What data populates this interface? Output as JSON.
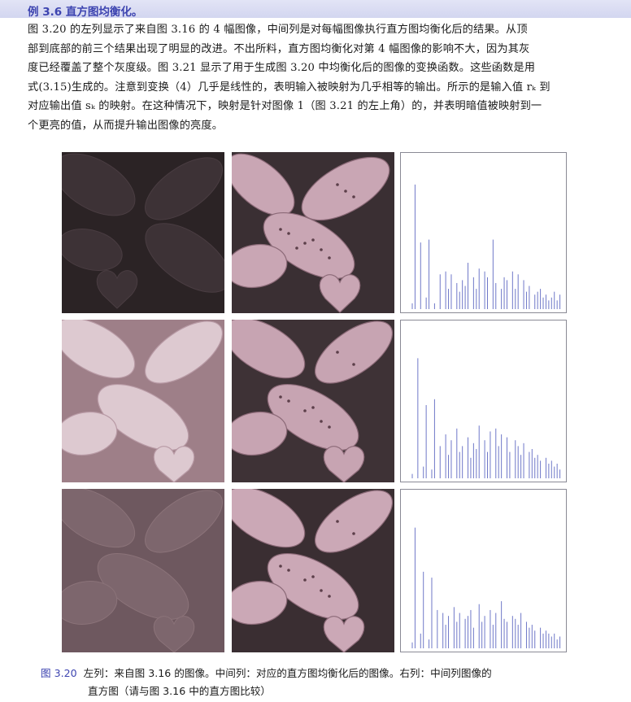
{
  "example": {
    "title": "例 3.6    直方图均衡化。"
  },
  "body_lines": [
    "图 3.20 的左列显示了来自图 3.16 的 4 幅图像，中间列是对每幅图像执行直方图均衡化后的结果。从顶",
    "部到底部的前三个结果出现了明显的改进。不出所料，直方图均衡化对第 4 幅图像的影响不大，因为其灰",
    "度已经覆盖了整个灰度级。图 3.21 显示了用于生成图 3.20 中均衡化后的图像的变换函数。这些函数是用",
    "式(3.15)生成的。注意到变换（4）几乎是线性的，表明输入被映射为几乎相等的输出。所示的是输入值 rₖ 到",
    "对应输出值 sₖ 的映射。在这种情况下，映射是针对图像 1（图 3.21 的左上角）的，并表明暗值被映射到一",
    "个更亮的值，从而提升输出图像的亮度。"
  ],
  "caption": {
    "label": "图 3.20",
    "line1": "左列：来自图 3.16 的图像。中间列：对应的直方图均衡化后的图像。右列：中间列图像的",
    "line2": "直方图（请与图 3.16 中的直方图比较）"
  },
  "colors": {
    "accent": "#3d44b0",
    "histogram_bar": "#6f78c8",
    "histogram_frame": "#8a8a95"
  },
  "histograms": [
    [
      0.04,
      0.86,
      0.0,
      0.46,
      0.0,
      0.08,
      0.48,
      0.0,
      0.04,
      0.0,
      0.24,
      0.0,
      0.26,
      0.14,
      0.24,
      0.0,
      0.18,
      0.12,
      0.2,
      0.16,
      0.32,
      0.0,
      0.22,
      0.14,
      0.28,
      0.0,
      0.26,
      0.22,
      0.0,
      0.48,
      0.18,
      0.0,
      0.14,
      0.22,
      0.2,
      0.0,
      0.26,
      0.14,
      0.24,
      0.0,
      0.2,
      0.12,
      0.16,
      0.0,
      0.1,
      0.12,
      0.14,
      0.08,
      0.1,
      0.06,
      0.08,
      0.12,
      0.06,
      0.1
    ],
    [
      0.03,
      0.0,
      0.82,
      0.0,
      0.08,
      0.5,
      0.0,
      0.06,
      0.54,
      0.0,
      0.22,
      0.0,
      0.3,
      0.16,
      0.26,
      0.0,
      0.34,
      0.18,
      0.22,
      0.0,
      0.28,
      0.14,
      0.24,
      0.2,
      0.36,
      0.0,
      0.26,
      0.18,
      0.32,
      0.0,
      0.34,
      0.22,
      0.3,
      0.0,
      0.28,
      0.18,
      0.0,
      0.26,
      0.22,
      0.16,
      0.24,
      0.0,
      0.18,
      0.2,
      0.14,
      0.16,
      0.12,
      0.0,
      0.14,
      0.1,
      0.12,
      0.08,
      0.1,
      0.06
    ],
    [
      0.04,
      0.82,
      0.0,
      0.1,
      0.52,
      0.0,
      0.06,
      0.48,
      0.0,
      0.26,
      0.0,
      0.24,
      0.16,
      0.22,
      0.0,
      0.28,
      0.18,
      0.24,
      0.0,
      0.2,
      0.22,
      0.26,
      0.14,
      0.0,
      0.3,
      0.18,
      0.22,
      0.0,
      0.26,
      0.16,
      0.24,
      0.0,
      0.32,
      0.2,
      0.18,
      0.0,
      0.22,
      0.2,
      0.16,
      0.24,
      0.0,
      0.18,
      0.14,
      0.16,
      0.12,
      0.0,
      0.14,
      0.1,
      0.12,
      0.1,
      0.08,
      0.1,
      0.06,
      0.08
    ]
  ]
}
